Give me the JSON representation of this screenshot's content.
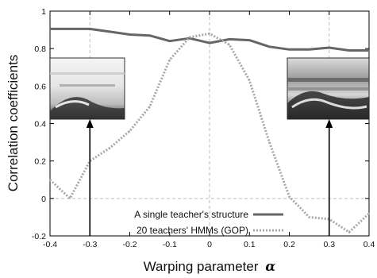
{
  "chart_data": {
    "type": "line",
    "title": "",
    "xlabel": "Warping parameter",
    "xlabel_symbol": "α",
    "ylabel": "Correlation coefficients",
    "xlim": [
      -0.4,
      0.4
    ],
    "ylim": [
      -0.2,
      1.0
    ],
    "x_ticks": [
      "-0.4",
      "-0.3",
      "-0.2",
      "-0.1",
      "0",
      "0.1",
      "0.2",
      "0.3",
      "0.4"
    ],
    "y_ticks": [
      "-0.2",
      "0",
      "0.2",
      "0.4",
      "0.6",
      "0.8",
      "1"
    ],
    "grid": "dashed reference lines at x = -0.3, 0, 0.3 and y = 0",
    "legend_position": "bottom-right",
    "x": [
      -0.4,
      -0.35,
      -0.3,
      -0.25,
      -0.2,
      -0.15,
      -0.1,
      -0.05,
      0.0,
      0.05,
      0.1,
      0.15,
      0.2,
      0.25,
      0.3,
      0.35,
      0.4
    ],
    "series": [
      {
        "name": "A single teacher's structure",
        "color": "#666666",
        "style": "solid",
        "values": [
          0.905,
          0.905,
          0.905,
          0.89,
          0.875,
          0.87,
          0.84,
          0.855,
          0.83,
          0.85,
          0.845,
          0.81,
          0.795,
          0.795,
          0.805,
          0.79,
          0.79
        ]
      },
      {
        "name": "20 teachers' HMMs (GOP)",
        "color": "#a8a8a8",
        "style": "dotted",
        "values": [
          0.1,
          0.0,
          0.2,
          0.27,
          0.36,
          0.49,
          0.74,
          0.86,
          0.88,
          0.82,
          0.63,
          0.3,
          0.01,
          -0.1,
          -0.11,
          -0.18,
          -0.08
        ]
      }
    ],
    "annotations": [
      {
        "type": "inset-spectrogram-arrow",
        "target_x": -0.3,
        "label": ""
      },
      {
        "type": "inset-spectrogram-arrow",
        "target_x": 0.3,
        "label": ""
      }
    ]
  }
}
